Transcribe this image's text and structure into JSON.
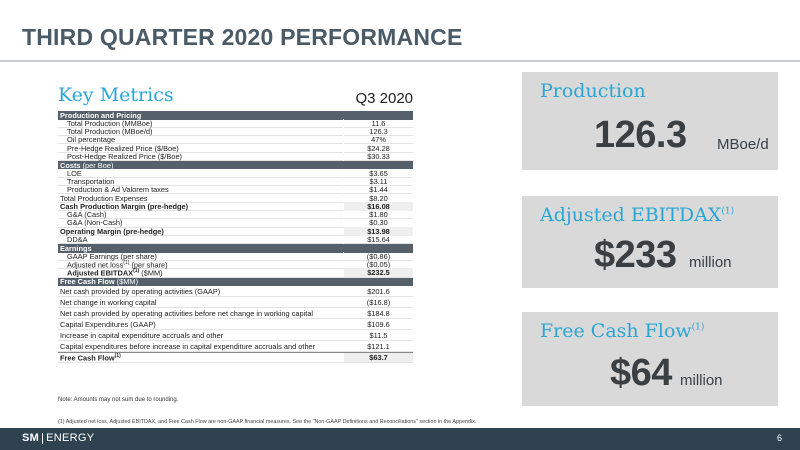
{
  "title": "THIRD QUARTER 2020 PERFORMANCE",
  "key_metrics": {
    "title": "Key Metrics",
    "period": "Q3 2020",
    "rows": [
      {
        "kind": "h",
        "label": "Production and Pricing",
        "value": ""
      },
      {
        "kind": "d",
        "label": "Total Production (MMBoe)",
        "value": "11.6"
      },
      {
        "kind": "d",
        "label": "Total Production (MBoe/d)",
        "value": "126.3"
      },
      {
        "kind": "d",
        "label": "Oil percentage",
        "value": "47%"
      },
      {
        "kind": "d",
        "label": "Pre-Hedge Realized Price ($/Boe)",
        "value": "$24.28"
      },
      {
        "kind": "d",
        "label": "Post-Hedge Realized Price ($/Boe)",
        "value": "$30.33"
      },
      {
        "kind": "h",
        "label": "Costs",
        "label_suffix": " (per Boe)",
        "value": ""
      },
      {
        "kind": "d",
        "label": "LOE",
        "value": "$3.65"
      },
      {
        "kind": "d",
        "label": "Transportation",
        "value": "$3.11"
      },
      {
        "kind": "d",
        "label": "Production & Ad Valorem taxes",
        "value": "$1.44"
      },
      {
        "kind": "df",
        "label": "Total Production Expenses",
        "value": "$8.20"
      },
      {
        "kind": "b",
        "label": "Cash Production Margin (pre-hedge)",
        "value": "$16.08"
      },
      {
        "kind": "d",
        "label": "G&A (Cash)",
        "value": "$1.80"
      },
      {
        "kind": "d",
        "label": "G&A (Non-Cash)",
        "value": "$0.30"
      },
      {
        "kind": "b",
        "label": "Operating Margin (pre-hedge)",
        "value": "$13.98"
      },
      {
        "kind": "d",
        "label": "DD&A",
        "value": "$15.64"
      },
      {
        "kind": "h",
        "label": "Earnings",
        "value": ""
      },
      {
        "kind": "d",
        "label": "GAAP Earnings (per share)",
        "value": "($0.86)"
      },
      {
        "kind": "d",
        "label": "Adjusted net loss",
        "sup": "(1)",
        "label_suffix": " (per share)",
        "value": "($0.05)"
      },
      {
        "kind": "bi",
        "label": "Adjusted EBITDAX",
        "sup": "(1)",
        "label_suffix": " ($MM)",
        "value": "$232.5"
      },
      {
        "kind": "h",
        "label": "Free Cash Flow",
        "label_suffix": " ($MM)",
        "value": ""
      },
      {
        "kind": "t",
        "label": "Net cash provided by operating activities (GAAP)",
        "value": "$201.6"
      },
      {
        "kind": "t",
        "label": "Net change in working capital",
        "value": "($16.8)"
      },
      {
        "kind": "t",
        "label": "Net cash provided by operating activities before net change in working capital",
        "value": "$184.8"
      },
      {
        "kind": "t",
        "label": "Capital Expenditures (GAAP)",
        "value": "$109.6"
      },
      {
        "kind": "t",
        "label": "Increase in capital expenditure accruals and other",
        "value": "$11.5"
      },
      {
        "kind": "t",
        "label": "Capital expenditures before increase in capital expenditure accruals and other",
        "value": "$121.1"
      },
      {
        "kind": "tb",
        "label": "Free Cash Flow",
        "sup": "(1)",
        "value": "$63.7"
      }
    ]
  },
  "note": "Note: Amounts may not sum due to rounding.",
  "footnote": "(1)     Adjusted net loss, Adjusted EBITDAX, and Free Cash Flow are non-GAAP financial measures. See the \"Non-GAAP Definitions and Reconciliations\" section in the Appendix.",
  "cards": {
    "production": {
      "label": "Production",
      "value": "126.3",
      "unit": "MBoe/d"
    },
    "ebitdax": {
      "label": "Adjusted EBITDAX",
      "sup": "(1)",
      "value": "$233",
      "unit": "million"
    },
    "fcf": {
      "label": "Free Cash Flow",
      "sup": "(1)",
      "value": "$64",
      "unit": "million"
    }
  },
  "footer": {
    "logo_left": "SM",
    "logo_right": "ENERGY",
    "page": "6"
  }
}
